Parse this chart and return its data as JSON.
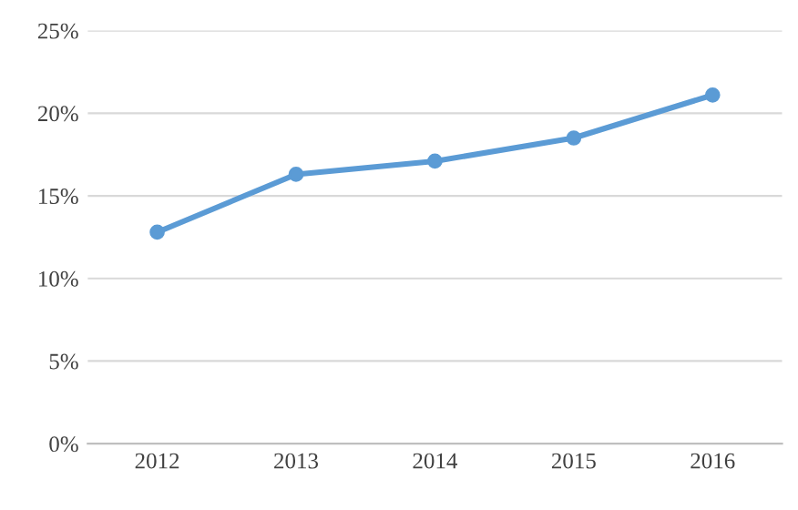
{
  "chart_data": {
    "type": "line",
    "categories": [
      "2012",
      "2013",
      "2014",
      "2015",
      "2016"
    ],
    "series": [
      {
        "color": "#5b9bd5",
        "values": [
          12.8,
          16.3,
          17.1,
          18.5,
          21.1
        ]
      }
    ],
    "ylim": [
      0,
      25
    ],
    "yticks": [
      {
        "value": 0,
        "label": "0%"
      },
      {
        "value": 5,
        "label": "5%"
      },
      {
        "value": 10,
        "label": "10%"
      },
      {
        "value": 15,
        "label": "15%"
      },
      {
        "value": 20,
        "label": "20%"
      },
      {
        "value": 25,
        "label": "25%"
      }
    ],
    "grid": "y",
    "marker": "circle",
    "line_style": "solid"
  }
}
